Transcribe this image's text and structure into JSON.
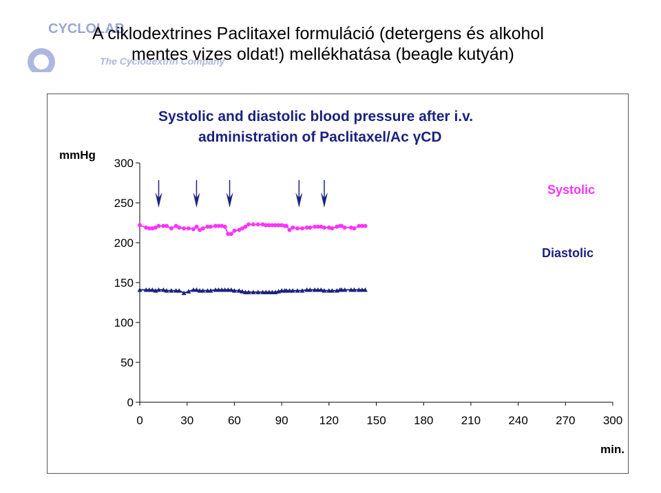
{
  "logo": {
    "name": "CYCLOLAB",
    "tagline": "The Cyclodextrin Company"
  },
  "slide_title": {
    "line1": "A ciklodextrines Paclitaxel formuláció (detergens és alkohol",
    "line2_a": "mentes vizes oldat!)",
    "line2_b": " mellékhatása (beagle kutyán)"
  },
  "colors": {
    "systolic": "#ff33ff",
    "diastolic": "#1a237e",
    "arrow": "#1a237e",
    "title": "#1a237e"
  },
  "chart_data": {
    "type": "line",
    "title_line1": "Systolic and diastolic blood pressure after i.v.",
    "title_line2": "administration of Paclitaxel/Ac   γCD",
    "ylabel": "mmHg",
    "xlabel": "min.",
    "xlim": [
      0,
      300
    ],
    "ylim": [
      0,
      300
    ],
    "x_ticks": [
      0,
      30,
      60,
      90,
      120,
      150,
      180,
      210,
      240,
      270,
      300
    ],
    "y_ticks": [
      0,
      50,
      100,
      150,
      200,
      250,
      300
    ],
    "arrows_x": [
      12,
      36,
      57,
      101,
      117
    ],
    "series": [
      {
        "name": "Systolic",
        "marker": "circle",
        "x": [
          0,
          4,
          6,
          8,
          10,
          12,
          15,
          17,
          20,
          23,
          25,
          28,
          31,
          34,
          36,
          38,
          40,
          43,
          45,
          48,
          50,
          52,
          54,
          56,
          58,
          60,
          63,
          65,
          67,
          69,
          72,
          75,
          78,
          80,
          82,
          84,
          86,
          88,
          90,
          92,
          93,
          95,
          97,
          100,
          103,
          106,
          108,
          111,
          113,
          115,
          117,
          120,
          122,
          125,
          127,
          128,
          130,
          134,
          136,
          139,
          141,
          143
        ],
        "y": [
          222,
          219,
          218,
          218,
          219,
          221,
          221,
          221,
          218,
          221,
          219,
          218,
          218,
          217,
          220,
          216,
          218,
          220,
          220,
          221,
          221,
          221,
          220,
          211,
          211,
          215,
          216,
          218,
          220,
          223,
          223,
          223,
          223,
          222,
          222,
          222,
          222,
          222,
          222,
          221,
          221,
          216,
          219,
          218,
          218,
          219,
          219,
          220,
          220,
          220,
          219,
          219,
          218,
          220,
          221,
          221,
          219,
          219,
          218,
          221,
          221,
          221
        ]
      },
      {
        "name": "Diastolic",
        "marker": "triangle",
        "x": [
          0,
          4,
          6,
          8,
          10,
          12,
          15,
          17,
          20,
          23,
          25,
          28,
          31,
          34,
          36,
          38,
          40,
          43,
          45,
          48,
          50,
          52,
          54,
          56,
          58,
          60,
          63,
          65,
          67,
          69,
          72,
          75,
          78,
          80,
          82,
          84,
          86,
          88,
          90,
          92,
          93,
          95,
          97,
          100,
          103,
          106,
          108,
          111,
          113,
          115,
          117,
          120,
          122,
          125,
          127,
          128,
          130,
          134,
          136,
          139,
          141,
          143
        ],
        "y": [
          141,
          141,
          141,
          141,
          140,
          141,
          141,
          140,
          140,
          140,
          140,
          137,
          139,
          141,
          141,
          140,
          140,
          140,
          140,
          141,
          141,
          141,
          141,
          141,
          141,
          140,
          140,
          139,
          138,
          138,
          138,
          138,
          138,
          138,
          138,
          138,
          138,
          139,
          140,
          140,
          140,
          140,
          140,
          140,
          140,
          141,
          141,
          141,
          141,
          141,
          140,
          140,
          140,
          140,
          141,
          141,
          141,
          141,
          141,
          141,
          141,
          141
        ]
      }
    ]
  }
}
